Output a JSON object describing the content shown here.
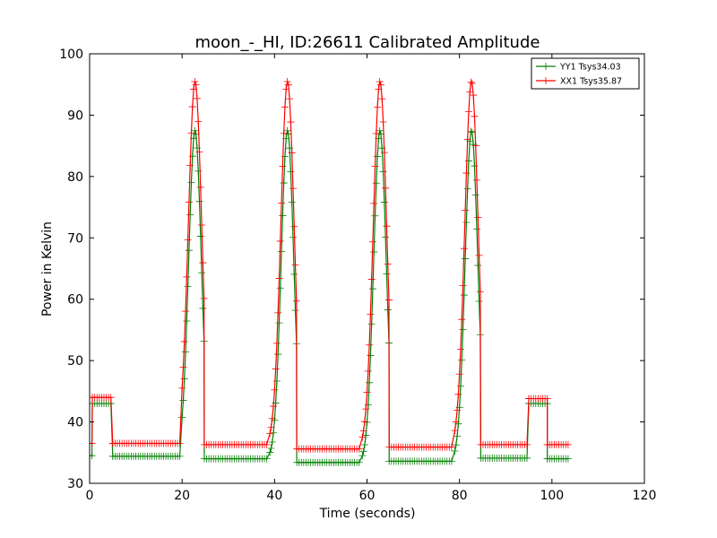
{
  "chart_data": {
    "type": "line",
    "title": "moon_-_HI, ID:26611 Calibrated Amplitude",
    "xlabel": "Time (seconds)",
    "ylabel": "Power in Kelvin",
    "xlim": [
      0,
      120
    ],
    "ylim": [
      30,
      100
    ],
    "xticks": [
      0,
      20,
      40,
      60,
      80,
      100,
      120
    ],
    "yticks": [
      30,
      40,
      50,
      60,
      70,
      80,
      90,
      100
    ],
    "grid": false,
    "legend_position": "top-right",
    "marker": "+",
    "peak_centers": [
      22.8,
      42.8,
      62.8,
      82.6
    ],
    "series": [
      {
        "name": "YY1 Tsys34.03",
        "color": "#008000",
        "segments": [
          {
            "x0": 0.0,
            "x1": 0.6,
            "y": 34.5
          },
          {
            "x0": 0.6,
            "x1": 5.0,
            "y": 43.0
          },
          {
            "x0": 5.0,
            "x1": 19.5,
            "y": 34.4
          },
          {
            "x0": 24.8,
            "x1": 38.5,
            "y": 34.0
          },
          {
            "x0": 44.8,
            "x1": 58.5,
            "y": 33.4
          },
          {
            "x0": 64.8,
            "x1": 78.5,
            "y": 33.6
          },
          {
            "x0": 84.6,
            "x1": 95.0,
            "y": 34.1
          },
          {
            "x0": 95.0,
            "x1": 99.0,
            "y": 43.0
          },
          {
            "x0": 99.0,
            "x1": 103.5,
            "y": 34.0
          }
        ],
        "peak_value": 87.5,
        "peak_half_width": 1.6
      },
      {
        "name": "XX1 Tsys35.87",
        "color": "#ff0000",
        "segments": [
          {
            "x0": 0.0,
            "x1": 0.6,
            "y": 36.5
          },
          {
            "x0": 0.6,
            "x1": 5.0,
            "y": 44.0
          },
          {
            "x0": 5.0,
            "x1": 19.5,
            "y": 36.5
          },
          {
            "x0": 24.8,
            "x1": 38.5,
            "y": 36.3
          },
          {
            "x0": 44.8,
            "x1": 58.5,
            "y": 35.6
          },
          {
            "x0": 64.8,
            "x1": 78.5,
            "y": 35.9
          },
          {
            "x0": 84.6,
            "x1": 95.0,
            "y": 36.3
          },
          {
            "x0": 95.0,
            "x1": 99.0,
            "y": 43.8
          },
          {
            "x0": 99.0,
            "x1": 103.5,
            "y": 36.3
          }
        ],
        "peak_value": 95.5,
        "peak_half_width": 1.7
      }
    ]
  }
}
